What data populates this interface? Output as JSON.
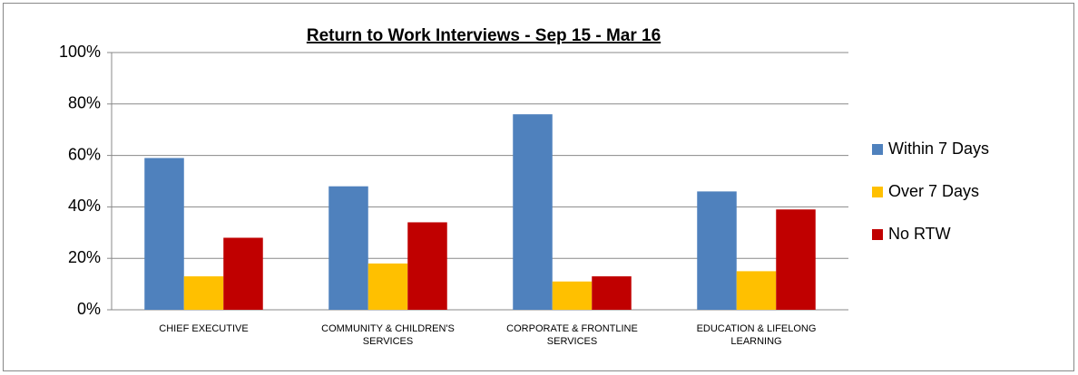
{
  "chart_data": {
    "type": "bar",
    "title": "Return to Work Interviews  - Sep 15 - Mar 16",
    "categories": [
      "CHIEF EXECUTIVE",
      "COMMUNITY & CHILDREN'S SERVICES",
      "CORPORATE & FRONTLINE SERVICES",
      "EDUCATION & LIFELONG LEARNING"
    ],
    "series": [
      {
        "name": "Within 7 Days",
        "color": "#4f81bd",
        "values": [
          59,
          48,
          76,
          46
        ]
      },
      {
        "name": "Over 7 Days",
        "color": "#ffc000",
        "values": [
          13,
          18,
          11,
          15
        ]
      },
      {
        "name": "No RTW",
        "color": "#c00000",
        "values": [
          28,
          34,
          13,
          39
        ]
      }
    ],
    "ylim": [
      0,
      100
    ],
    "yticks": [
      {
        "value": 0,
        "label": "0%"
      },
      {
        "value": 20,
        "label": "20%"
      },
      {
        "value": 40,
        "label": "40%"
      },
      {
        "value": 60,
        "label": "60%"
      },
      {
        "value": 80,
        "label": "80%"
      },
      {
        "value": 100,
        "label": "100%"
      }
    ],
    "grid": true,
    "legend": "right"
  }
}
